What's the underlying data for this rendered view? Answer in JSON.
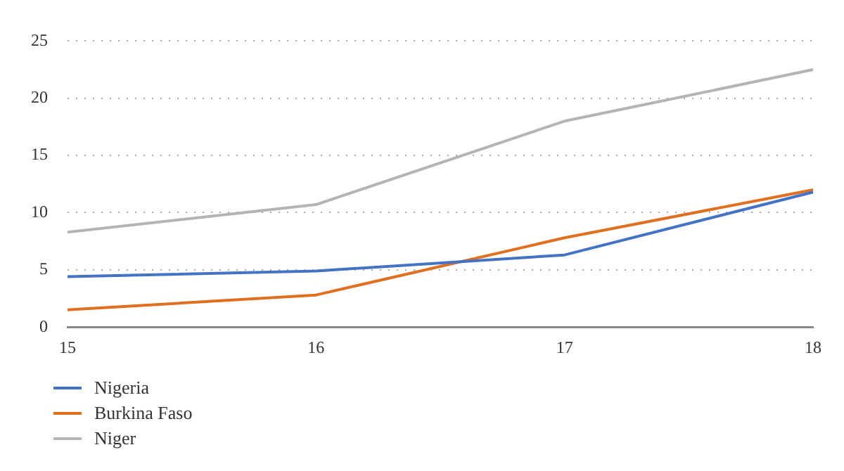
{
  "chart_data": {
    "type": "line",
    "categories": [
      "15",
      "16",
      "17",
      "18"
    ],
    "series": [
      {
        "name": "Nigeria",
        "color": "#4472c4",
        "values": [
          4.4,
          4.9,
          6.3,
          11.8
        ]
      },
      {
        "name": "Burkina Faso",
        "color": "#e07020",
        "values": [
          1.5,
          2.8,
          7.8,
          12.0
        ]
      },
      {
        "name": "Niger",
        "color": "#b4b4b4",
        "values": [
          8.3,
          10.7,
          18.0,
          22.5
        ]
      }
    ],
    "ylim": [
      0,
      25
    ],
    "yticks": [
      0,
      5,
      10,
      15,
      20,
      25
    ],
    "grid": "y",
    "legend": "bottom left",
    "marker": "none",
    "line_style": "solid"
  }
}
